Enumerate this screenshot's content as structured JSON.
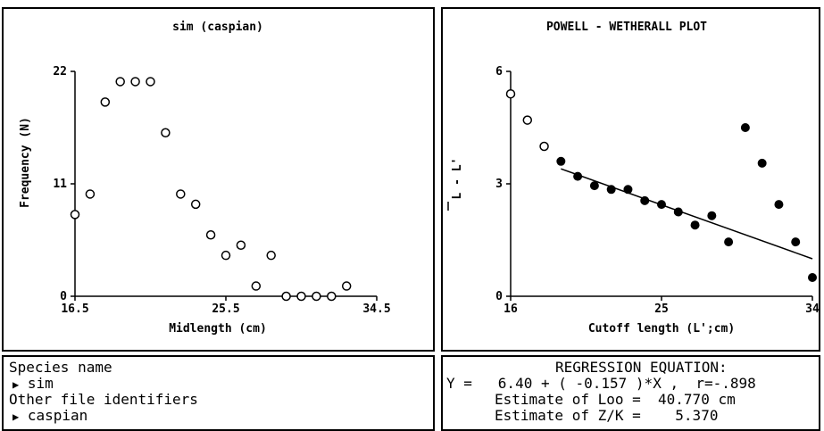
{
  "chart_data": [
    {
      "type": "scatter",
      "title": "sim (caspian)",
      "xlabel": "Midlength (cm)",
      "ylabel": "Frequency (N)",
      "xlim": [
        16.5,
        34.5
      ],
      "ylim": [
        0,
        22
      ],
      "x_ticks": [
        "16.5",
        "25.5",
        "34.5"
      ],
      "y_ticks": [
        "0",
        "11",
        "22"
      ],
      "points": [
        {
          "x": 16.5,
          "y": 8
        },
        {
          "x": 17.4,
          "y": 10
        },
        {
          "x": 18.3,
          "y": 19
        },
        {
          "x": 19.2,
          "y": 21
        },
        {
          "x": 20.1,
          "y": 21
        },
        {
          "x": 21.0,
          "y": 21
        },
        {
          "x": 21.9,
          "y": 16
        },
        {
          "x": 22.8,
          "y": 10
        },
        {
          "x": 23.7,
          "y": 9
        },
        {
          "x": 24.6,
          "y": 6
        },
        {
          "x": 25.5,
          "y": 4
        },
        {
          "x": 26.4,
          "y": 5
        },
        {
          "x": 27.3,
          "y": 1
        },
        {
          "x": 28.2,
          "y": 4
        },
        {
          "x": 29.1,
          "y": 0
        },
        {
          "x": 30.0,
          "y": 0
        },
        {
          "x": 30.9,
          "y": 0
        },
        {
          "x": 31.8,
          "y": 0
        },
        {
          "x": 32.7,
          "y": 1
        }
      ],
      "marker_fill": "none",
      "grid": false
    },
    {
      "type": "scatter",
      "title": "POWELL - WETHERALL PLOT",
      "xlabel": "Cutoff length (L';cm)",
      "ylabel": "L - L'",
      "xlim": [
        16,
        34
      ],
      "ylim": [
        0,
        6
      ],
      "x_ticks": [
        "16",
        "25",
        "34"
      ],
      "y_ticks": [
        "0",
        "3",
        "6"
      ],
      "open_points": [
        {
          "x": 16,
          "y": 5.4
        },
        {
          "x": 17,
          "y": 4.7
        },
        {
          "x": 18,
          "y": 4.0
        }
      ],
      "filled_points": [
        {
          "x": 19,
          "y": 3.6
        },
        {
          "x": 20,
          "y": 3.2
        },
        {
          "x": 21,
          "y": 2.95
        },
        {
          "x": 22,
          "y": 2.85
        },
        {
          "x": 23,
          "y": 2.85
        },
        {
          "x": 24,
          "y": 2.55
        },
        {
          "x": 25,
          "y": 2.45
        },
        {
          "x": 26,
          "y": 2.25
        },
        {
          "x": 27,
          "y": 1.9
        },
        {
          "x": 28,
          "y": 2.15
        },
        {
          "x": 29,
          "y": 1.45
        },
        {
          "x": 30,
          "y": 4.5
        },
        {
          "x": 31,
          "y": 3.55
        },
        {
          "x": 32,
          "y": 2.45
        },
        {
          "x": 33,
          "y": 1.45
        },
        {
          "x": 34,
          "y": 0.5
        }
      ],
      "regression": {
        "x": [
          19,
          34
        ],
        "y": [
          3.4,
          1.0
        ]
      },
      "grid": false
    }
  ],
  "info_left": {
    "line1": "Species name",
    "line2": "sim",
    "line3": "Other file identifiers",
    "line4": "caspian",
    "arrow": "▶"
  },
  "info_right": {
    "line1": "REGRESSION EQUATION:",
    "line2": "Y =   6.40 + ( -0.157 )*X ,  r=-.898",
    "line3": "Estimate of Loo =  40.770 cm",
    "line4": "Estimate of Z/K =    5.370"
  }
}
